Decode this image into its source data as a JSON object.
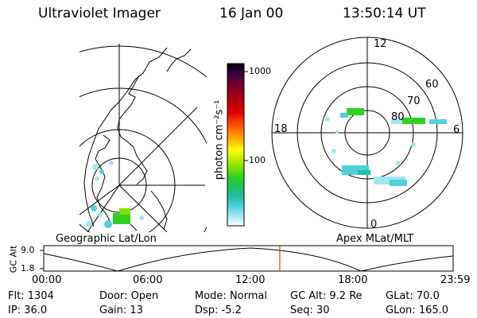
{
  "header": {
    "instrument": "Ultraviolet Imager",
    "date": "16 Jan 00",
    "time": "13:50:14 UT"
  },
  "colorbar": {
    "unit_label": "photon cm⁻²s⁻¹",
    "ticks": [
      "1000",
      "100"
    ],
    "scale": "log",
    "colors": [
      "#000000",
      "#3a0040",
      "#7a0028",
      "#b00010",
      "#e00000",
      "#ff3c00",
      "#ff8000",
      "#ffc000",
      "#ffff00",
      "#c8f000",
      "#80e000",
      "#30d020",
      "#20c060",
      "#20c0a0",
      "#50d0d8",
      "#a0e8f0",
      "#ffffff"
    ]
  },
  "left_map": {
    "label": "Geographic Lat/Lon"
  },
  "right_map": {
    "label": "Apex MLat/MLT",
    "mlt_labels": [
      "12",
      "18",
      "6",
      "0"
    ],
    "lat_labels": [
      "60",
      "70",
      "80"
    ]
  },
  "orbit_plot": {
    "y_axis_label": "GC Alt",
    "y_ticks": [
      "9.0",
      "1.8"
    ],
    "x_ticks": [
      "00:00",
      "06:00",
      "12:00",
      "18:00",
      "23:59"
    ],
    "current_time_marker_color": "#ff0000",
    "current_time_fraction": 0.5766
  },
  "status": {
    "row1": [
      {
        "label": "Flt:",
        "value": "1304"
      },
      {
        "label": "Door:",
        "value": "Open"
      },
      {
        "label": "Mode:",
        "value": "Normal"
      },
      {
        "label": "GC Alt:",
        "value": "9.2 Re"
      },
      {
        "label": "GLat:",
        "value": "70.0"
      }
    ],
    "row2": [
      {
        "label": "IP:",
        "value": "36.0"
      },
      {
        "label": "Gain:",
        "value": "13"
      },
      {
        "label": "Dsp:",
        "value": "-5.2"
      },
      {
        "label": "Seq:",
        "value": "30"
      },
      {
        "label": "GLon:",
        "value": "165.0"
      }
    ]
  }
}
